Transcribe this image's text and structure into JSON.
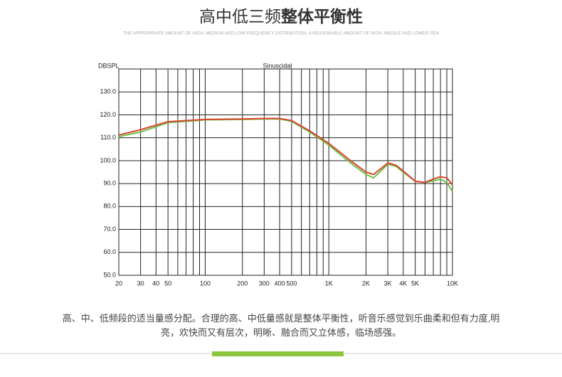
{
  "title_plain": "高中低三频",
  "title_bold": "整体平衡性",
  "subtitle": "THE APPROPRIATE AMOUNT OF HIGH, MEDIUM AND LOW FREQUENCY DISTRIBUTION. A REASONABLE AMOUNT OF HIGH, MIDDLE AND LOWER SEN",
  "chart_data": {
    "type": "line",
    "title": "Sinuscidal",
    "y_label": "DBSPL",
    "log_x": true,
    "grid": true,
    "xlim": [
      20,
      10000
    ],
    "ylim": [
      50,
      140
    ],
    "xticks": [
      20,
      30,
      40,
      50,
      100,
      200,
      300,
      400,
      500,
      {
        "value": 1000,
        "label": "1K"
      },
      {
        "value": 2000,
        "label": "2K"
      },
      {
        "value": 3000,
        "label": "3K"
      },
      {
        "value": 4000,
        "label": "4K"
      },
      {
        "value": 5000,
        "label": "5K"
      },
      {
        "value": 10000,
        "label": "10K"
      }
    ],
    "minor_xticks": [
      60,
      70,
      80,
      90,
      600,
      700,
      800,
      900,
      6000,
      7000,
      8000,
      9000
    ],
    "yticks": [
      {
        "value": 50,
        "label": "50.0"
      },
      {
        "value": 60,
        "label": "60.0"
      },
      {
        "value": 70,
        "label": "70.0"
      },
      {
        "value": 80,
        "label": "80.0"
      },
      {
        "value": 90,
        "label": "90.0"
      },
      {
        "value": 100,
        "label": "100.0"
      },
      {
        "value": 110,
        "label": "110.0"
      },
      {
        "value": 120,
        "label": "120.0"
      },
      {
        "value": 130,
        "label": "130.0"
      }
    ],
    "x": [
      20,
      30,
      40,
      50,
      100,
      200,
      300,
      400,
      500,
      700,
      1000,
      1500,
      2000,
      2300,
      2700,
      3000,
      3500,
      4000,
      5000,
      6000,
      7000,
      8000,
      9000,
      10000
    ],
    "series": [
      {
        "color": "#6cc04a",
        "values": [
          110.5,
          112.5,
          114.8,
          116.6,
          117.8,
          118.0,
          118.2,
          118.2,
          117.2,
          112.5,
          106.8,
          99,
          94,
          92.5,
          96,
          98.5,
          97.5,
          95,
          91,
          90.5,
          91.2,
          92,
          90.5,
          86.5
        ]
      },
      {
        "color": "#d9452b",
        "values": [
          111.2,
          113.5,
          115.5,
          117,
          118,
          118.2,
          118.4,
          118.4,
          117.5,
          113,
          107.5,
          100,
          95,
          94,
          97,
          99,
          98,
          95.5,
          91,
          90.5,
          92,
          93,
          92.5,
          89.5
        ]
      }
    ]
  },
  "paragraph": [
    "高、中、低频段的适当量感分配。合理的高、中低量感就是整体平衡性，听音乐感觉到乐曲柔和但有力度,明",
    "亮，欢快而又有层次，明晰、融合而又立体感，临场感强。"
  ]
}
